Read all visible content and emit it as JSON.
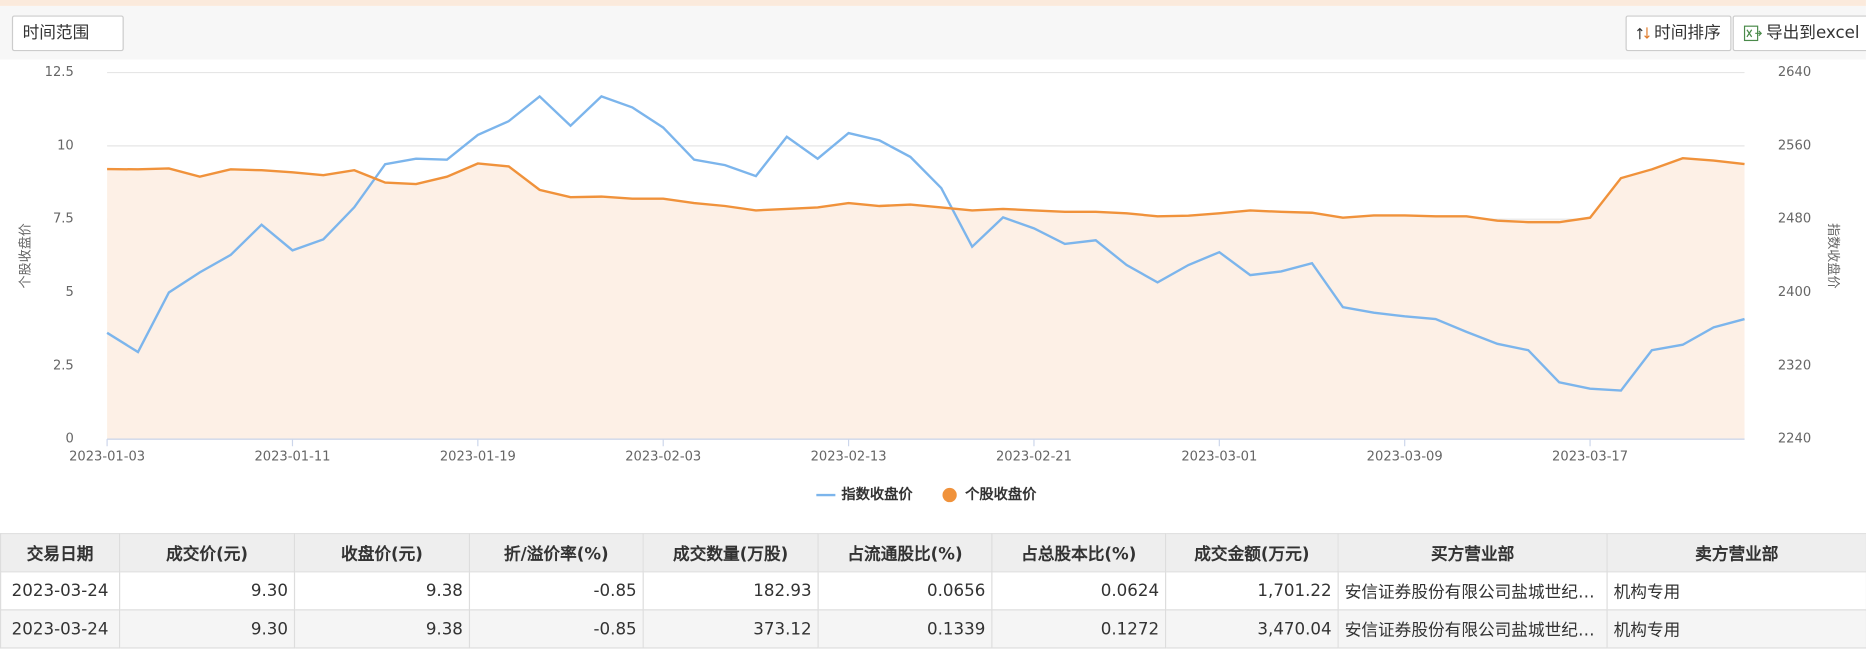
{
  "toolbar": {
    "range_button": "时间范围",
    "sort_button": "时间排序",
    "export_button": "导出到excel"
  },
  "chart_data": {
    "type": "line",
    "ylabel": "个股收盘价",
    "y2label": "指数收盘价",
    "categories": [
      "2023-01-03",
      null,
      null,
      null,
      null,
      null,
      "2023-01-11",
      null,
      null,
      null,
      null,
      null,
      "2023-01-19",
      null,
      null,
      null,
      null,
      null,
      "2023-02-03",
      null,
      null,
      null,
      null,
      null,
      "2023-02-13",
      null,
      null,
      null,
      null,
      null,
      "2023-02-21",
      null,
      null,
      null,
      null,
      null,
      "2023-03-01",
      null,
      null,
      null,
      null,
      null,
      "2023-03-09",
      null,
      null,
      null,
      null,
      null,
      "2023-03-17",
      null,
      null,
      null,
      null,
      null
    ],
    "series": [
      {
        "name": "指数收盘价",
        "color": "#7cb5ec",
        "axis": "y2",
        "marker": "line",
        "values": [
          2356,
          2335,
          2400,
          2422,
          2441,
          2474,
          2446,
          2458,
          2493,
          2540,
          2546,
          2545,
          2572,
          2587,
          2614,
          2582,
          2614,
          2602,
          2580,
          2545,
          2539,
          2527,
          2570,
          2546,
          2574,
          2566,
          2548,
          2514,
          2450,
          2482,
          2470,
          2453,
          2457,
          2430,
          2411,
          2430,
          2444,
          2419,
          2423,
          2432,
          2384,
          2378,
          2374,
          2371,
          2357,
          2344,
          2337,
          2302,
          2295,
          2293,
          2337,
          2343,
          2362,
          2371
        ]
      },
      {
        "name": "个股收盘价",
        "color": "#f0923b",
        "fill": "#fdf0e6",
        "marker": "circle",
        "values": [
          9.21,
          9.2,
          9.23,
          8.95,
          9.2,
          9.17,
          9.1,
          9.0,
          9.17,
          8.75,
          8.7,
          8.95,
          9.4,
          9.3,
          8.5,
          8.25,
          8.27,
          8.2,
          8.2,
          8.05,
          7.95,
          7.8,
          7.85,
          7.9,
          8.05,
          7.95,
          8.0,
          7.9,
          7.8,
          7.85,
          7.8,
          7.75,
          7.75,
          7.7,
          7.6,
          7.62,
          7.7,
          7.8,
          7.75,
          7.72,
          7.55,
          7.63,
          7.63,
          7.6,
          7.6,
          7.45,
          7.4,
          7.4,
          7.55,
          8.9,
          9.2,
          9.58,
          9.5,
          9.38
        ]
      }
    ],
    "ylim": [
      0,
      12.5
    ],
    "yticks": [
      0,
      2.5,
      5,
      7.5,
      10,
      12.5
    ],
    "y2lim": [
      2240,
      2640
    ],
    "y2ticks": [
      2240,
      2320,
      2400,
      2480,
      2560,
      2640
    ],
    "grid": true,
    "legend": "bottom"
  },
  "table": {
    "columns": [
      "交易日期",
      "成交价(元)",
      "收盘价(元)",
      "折/溢价率(%)",
      "成交数量(万股)",
      "占流通股比(%)",
      "占总股本比(%)",
      "成交金额(万元)",
      "买方营业部",
      "卖方营业部"
    ],
    "rows": [
      [
        "2023-03-24",
        "9.30",
        "9.38",
        "-0.85",
        "182.93",
        "0.0656",
        "0.0624",
        "1,701.22",
        "安信证券股份有限公司盐城世纪大道证券营业部",
        "机构专用"
      ],
      [
        "2023-03-24",
        "9.30",
        "9.38",
        "-0.85",
        "373.12",
        "0.1339",
        "0.1272",
        "3,470.04",
        "安信证券股份有限公司盐城世纪大道证券营业部",
        "机构专用"
      ]
    ]
  }
}
